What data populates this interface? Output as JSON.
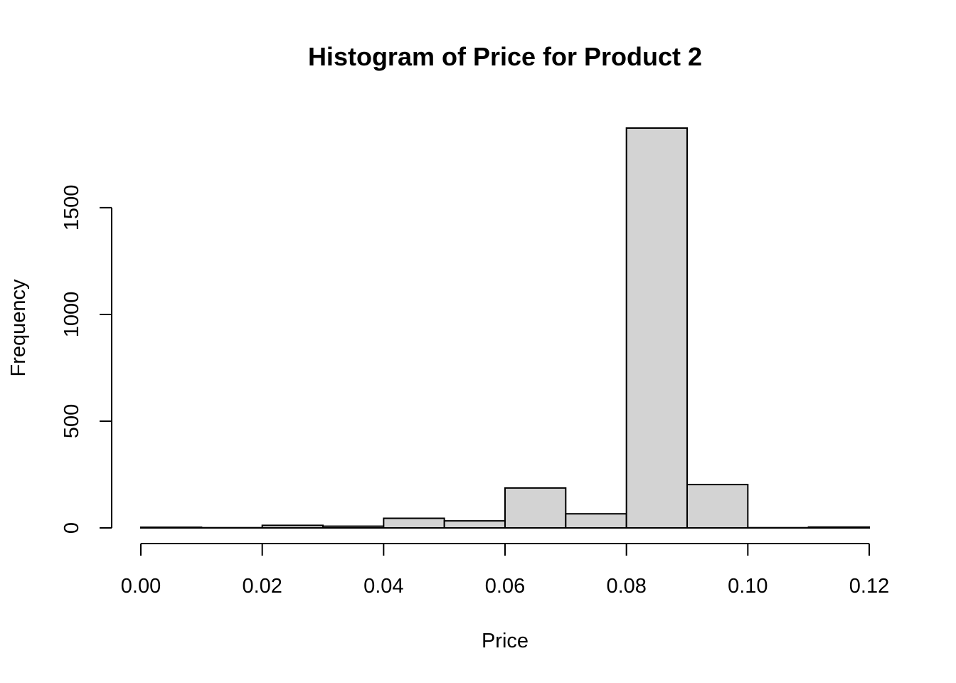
{
  "chart_data": {
    "type": "bar",
    "title": "Histogram of Price for Product 2",
    "xlabel": "Price",
    "ylabel": "Frequency",
    "bins": [
      {
        "start": 0.0,
        "end": 0.01,
        "count": 3
      },
      {
        "start": 0.01,
        "end": 0.02,
        "count": 1
      },
      {
        "start": 0.02,
        "end": 0.03,
        "count": 12
      },
      {
        "start": 0.03,
        "end": 0.04,
        "count": 8
      },
      {
        "start": 0.04,
        "end": 0.05,
        "count": 45
      },
      {
        "start": 0.05,
        "end": 0.06,
        "count": 33
      },
      {
        "start": 0.06,
        "end": 0.07,
        "count": 187
      },
      {
        "start": 0.07,
        "end": 0.08,
        "count": 66
      },
      {
        "start": 0.08,
        "end": 0.09,
        "count": 1873
      },
      {
        "start": 0.09,
        "end": 0.1,
        "count": 203
      },
      {
        "start": 0.1,
        "end": 0.11,
        "count": 1
      },
      {
        "start": 0.11,
        "end": 0.12,
        "count": 4
      }
    ],
    "xlim": [
      0.0,
      0.12
    ],
    "ylim": [
      0,
      1873
    ],
    "xticks": [
      {
        "value": 0.0,
        "label": "0.00"
      },
      {
        "value": 0.02,
        "label": "0.02"
      },
      {
        "value": 0.04,
        "label": "0.04"
      },
      {
        "value": 0.06,
        "label": "0.06"
      },
      {
        "value": 0.08,
        "label": "0.08"
      },
      {
        "value": 0.1,
        "label": "0.10"
      },
      {
        "value": 0.12,
        "label": "0.12"
      }
    ],
    "yticks": [
      {
        "value": 0,
        "label": "0"
      },
      {
        "value": 500,
        "label": "500"
      },
      {
        "value": 1000,
        "label": "1000"
      },
      {
        "value": 1500,
        "label": "1500"
      }
    ],
    "bar_color": "#d3d3d3",
    "edge_color": "#000000",
    "grid": false
  }
}
